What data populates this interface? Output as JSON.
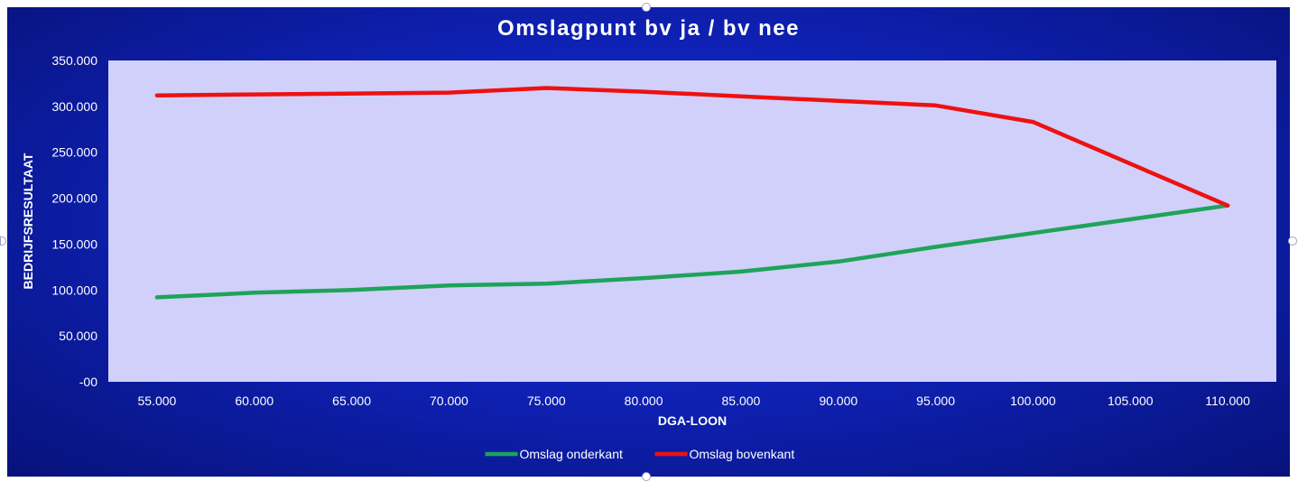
{
  "chart_data": {
    "type": "line",
    "title": "Omslagpunt bv ja / bv nee",
    "xlabel": "DGA-LOON",
    "ylabel": "BEDRIJFSRESULTAAT",
    "x": [
      55000,
      60000,
      65000,
      70000,
      75000,
      80000,
      85000,
      90000,
      95000,
      100000,
      105000,
      110000
    ],
    "x_tick_labels": [
      "55.000",
      "60.000",
      "65.000",
      "70.000",
      "75.000",
      "80.000",
      "85.000",
      "90.000",
      "95.000",
      "100.000",
      "105.000",
      "110.000"
    ],
    "ylim": [
      0,
      350000
    ],
    "y_ticks": [
      0,
      50000,
      100000,
      150000,
      200000,
      250000,
      300000,
      350000
    ],
    "y_tick_labels": [
      "-00",
      "50.000",
      "100.000",
      "150.000",
      "200.000",
      "250.000",
      "300.000",
      "350.000"
    ],
    "series": [
      {
        "name": "Omslag onderkant",
        "color": "#1fa35a",
        "points": [
          [
            55000,
            92000
          ],
          [
            60000,
            97000
          ],
          [
            65000,
            100000
          ],
          [
            70000,
            105000
          ],
          [
            75000,
            107000
          ],
          [
            80000,
            113000
          ],
          [
            85000,
            120000
          ],
          [
            90000,
            131000
          ],
          [
            95000,
            147000
          ],
          [
            100000,
            162000
          ],
          [
            110000,
            192000
          ]
        ]
      },
      {
        "name": "Omslag bovenkant",
        "color": "#ee1111",
        "points": [
          [
            55000,
            312000
          ],
          [
            70000,
            315000
          ],
          [
            75000,
            320000
          ],
          [
            80000,
            316000
          ],
          [
            85000,
            311000
          ],
          [
            90000,
            306000
          ],
          [
            95000,
            301000
          ],
          [
            100000,
            283000
          ],
          [
            110000,
            192000
          ]
        ]
      }
    ],
    "plot_background": "#d0d0fa",
    "frame_background": "#1020c0",
    "grid": false,
    "legend_position": "bottom"
  }
}
